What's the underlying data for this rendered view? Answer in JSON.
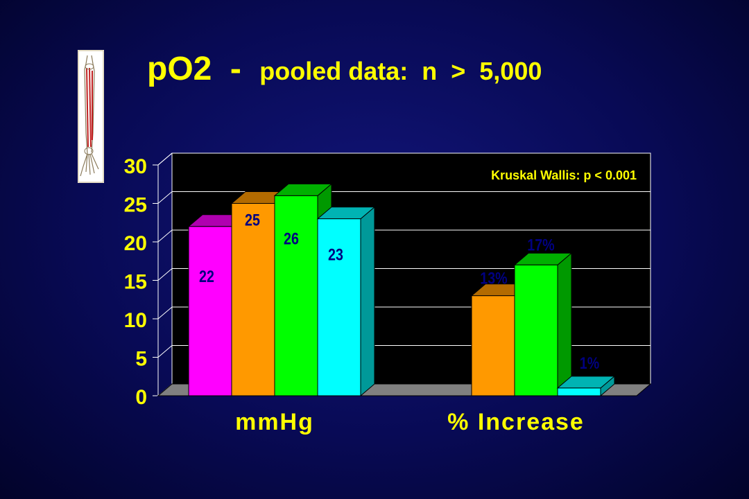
{
  "slide": {
    "title_main": "pO2",
    "title_dash": "-",
    "title_rest": "pooled data:  n  >  5,000"
  },
  "colors": {
    "background": "#080a55",
    "title": "#ffff00",
    "axis_text": "#ffff00",
    "value_labels": "#000080",
    "floor": "#808080",
    "gridlines": "#ffffff"
  },
  "chart_data": {
    "type": "bar",
    "style": "3d-clustered",
    "categories": [
      "mmHg",
      "% Increase"
    ],
    "ylim": [
      0,
      30
    ],
    "yticks": [
      0,
      5,
      10,
      15,
      20,
      25,
      30
    ],
    "grid": true,
    "annotation": "Kruskal Wallis: p < 0.001",
    "groups": [
      {
        "category": "mmHg",
        "bars": [
          {
            "value": 22,
            "label": "22",
            "color": "#ff00ff",
            "top_color": "#b000b0",
            "side_color": "#990099"
          },
          {
            "value": 25,
            "label": "25",
            "color": "#ff9900",
            "top_color": "#b36b00",
            "side_color": "#995c00"
          },
          {
            "value": 26,
            "label": "26",
            "color": "#00ff00",
            "top_color": "#00b000",
            "side_color": "#009900"
          },
          {
            "value": 23,
            "label": "23",
            "color": "#00ffff",
            "top_color": "#00b3b3",
            "side_color": "#009999"
          }
        ]
      },
      {
        "category": "% Increase",
        "bars": [
          {
            "value": 13,
            "label": "13%",
            "color": "#ff9900",
            "top_color": "#b36b00",
            "side_color": "#995c00"
          },
          {
            "value": 17,
            "label": "17%",
            "color": "#00ff00",
            "top_color": "#00b000",
            "side_color": "#009900"
          },
          {
            "value": 1,
            "label": "1%",
            "color": "#00ffff",
            "top_color": "#00b3b3",
            "side_color": "#009999"
          }
        ]
      }
    ]
  }
}
